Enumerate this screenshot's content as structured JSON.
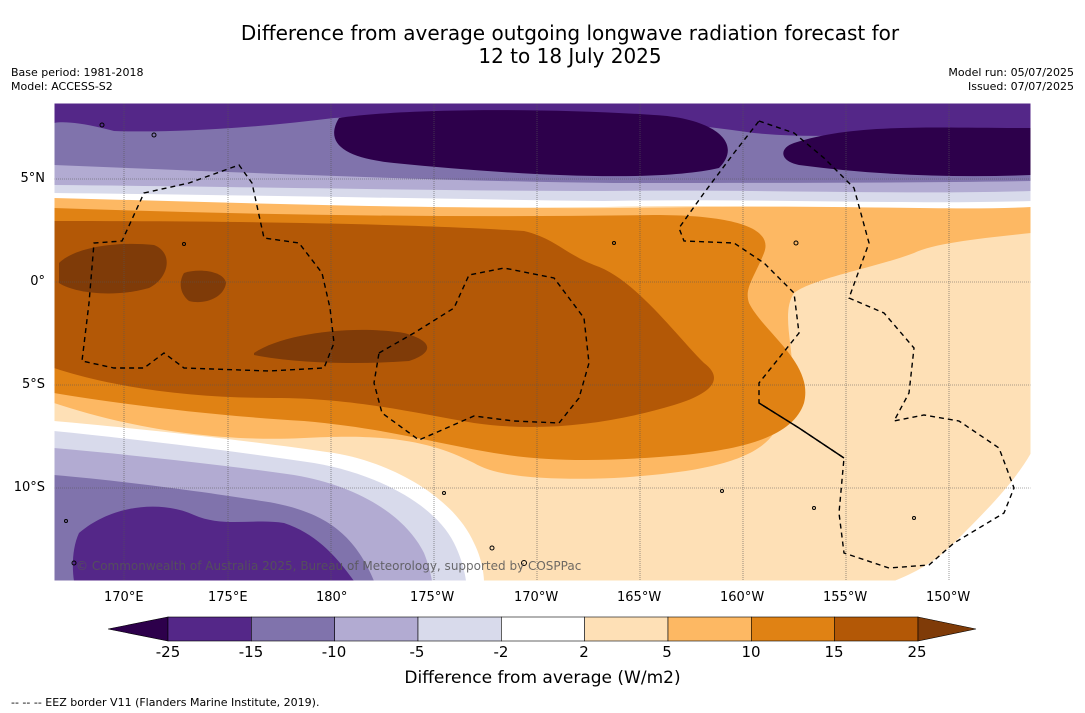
{
  "title": {
    "line1": "Difference from average outgoing longwave radiation forecast for",
    "line2": "12 to 18 July 2025"
  },
  "meta": {
    "base_period": "Base period: 1981-2018",
    "model": "Model: ACCESS-S2",
    "model_run": "Model run: 05/07/2025",
    "issued": "Issued: 07/07/2025"
  },
  "map": {
    "lat_ticks": [
      "5°N",
      "0°",
      "5°S",
      "10°S"
    ],
    "lon_ticks": [
      "170°E",
      "175°E",
      "180°",
      "175°W",
      "170°W",
      "165°W",
      "160°W",
      "155°W",
      "150°W"
    ],
    "credit": "© Commonwealth of Australia 2025, Bureau of Meteorology, supported by COSPPac"
  },
  "colorbar": {
    "ticks": [
      "-25",
      "-15",
      "-10",
      "-5",
      "-2",
      "2",
      "5",
      "10",
      "15",
      "25"
    ],
    "colors": [
      "#2d004b",
      "#542788",
      "#8073ac",
      "#b2abd2",
      "#d8daeb",
      "#ffffff",
      "#fee0b6",
      "#fdb863",
      "#e08214",
      "#b35806",
      "#7f3b08"
    ],
    "label": "Difference from average (W/m2)"
  },
  "legend_note": "--  --  -- EEZ border V11 (Flanders Marine Institute, 2019)."
}
